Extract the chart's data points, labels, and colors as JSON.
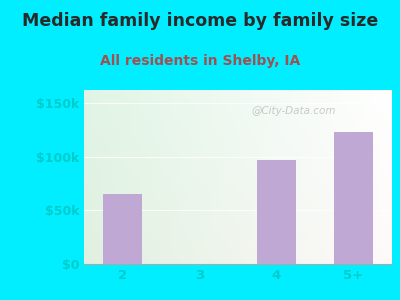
{
  "title": "Median family income by family size",
  "subtitle": "All residents in Shelby, IA",
  "categories": [
    "2",
    "3",
    "4",
    "5+"
  ],
  "values": [
    65000,
    0,
    97000,
    123000
  ],
  "bar_color": "#c0a8d4",
  "background_outer": "#00eeff",
  "title_color": "#2a2a2a",
  "subtitle_color": "#a05050",
  "tick_color": "#00cccc",
  "ytick_labels": [
    "$0",
    "$50k",
    "$100k",
    "$150k"
  ],
  "ytick_values": [
    0,
    50000,
    100000,
    150000
  ],
  "ylim": [
    0,
    162000
  ],
  "title_fontsize": 12.5,
  "subtitle_fontsize": 10,
  "watermark": "@City-Data.com"
}
